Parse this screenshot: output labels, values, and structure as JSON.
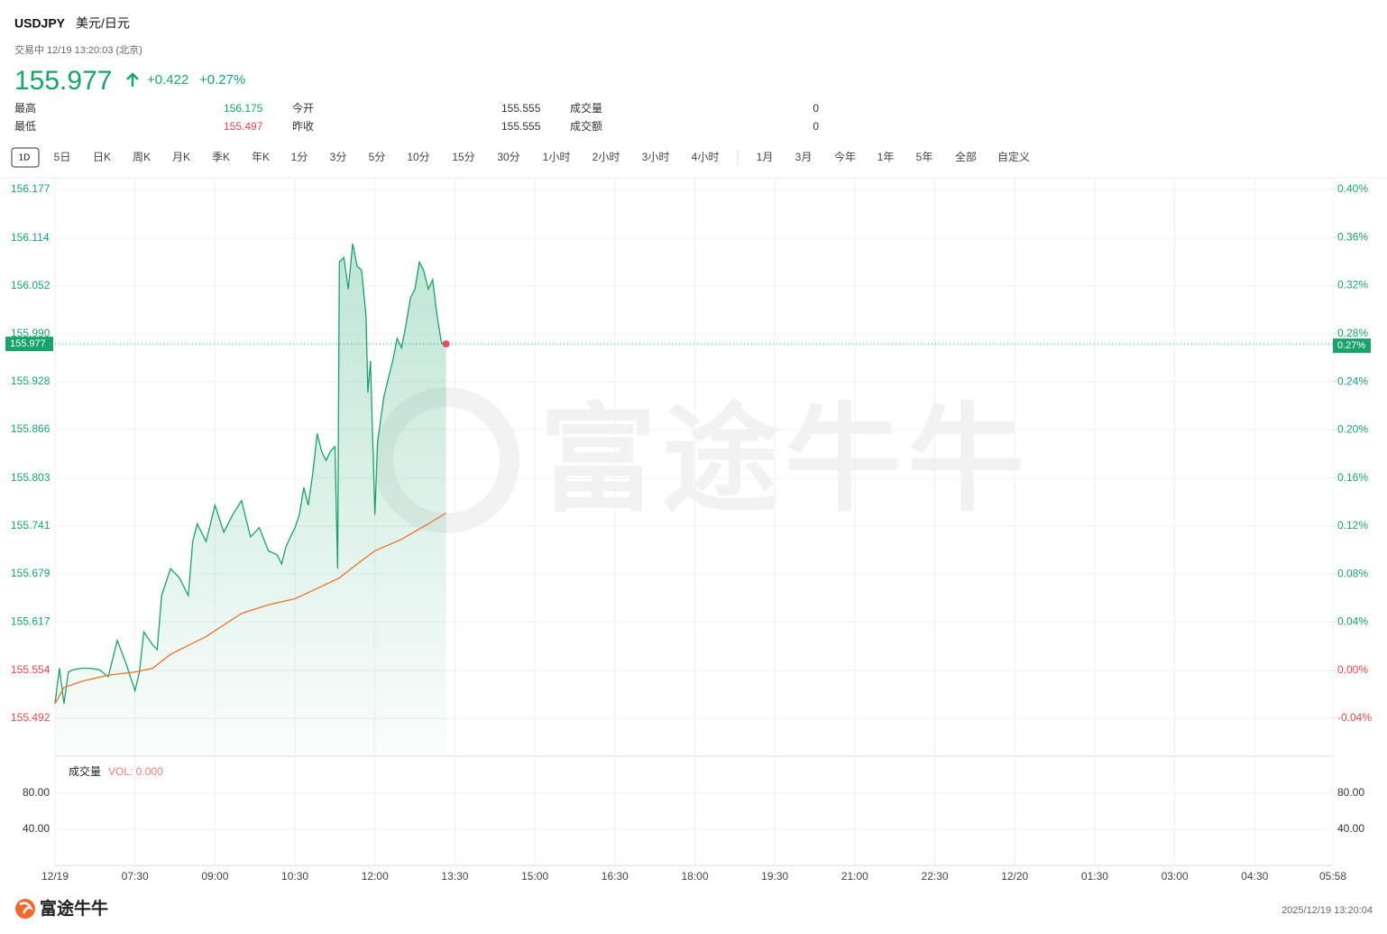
{
  "header": {
    "symbol": "USDJPY",
    "name": "美元/日元",
    "status": "交易中 12/19 13:20:03 (北京)",
    "price": "155.977",
    "change": "+0.422",
    "change_pct": "+0.27%"
  },
  "stats": {
    "rows": [
      [
        "最高",
        "156.175",
        "今开",
        "155.555",
        "成交量",
        "0"
      ],
      [
        "最低",
        "155.497",
        "昨收",
        "155.555",
        "成交额",
        "0"
      ]
    ]
  },
  "tabs": [
    [
      "1D",
      "5日",
      "日K",
      "周K",
      "月K",
      "季K",
      "年K",
      "1分",
      "3分",
      "5分",
      "10分",
      "15分",
      "30分",
      "1小时",
      "2小时",
      "3小时",
      "4小时"
    ],
    [
      "1月",
      "3月",
      "今年",
      "1年",
      "5年",
      "全部",
      "自定义"
    ]
  ],
  "chart_data": {
    "type": "line",
    "watermark": "富途牛牛",
    "prev_close": 155.555,
    "current_price": 155.977,
    "current_pct": {
      "value": 0.27,
      "label": "0.27%"
    },
    "x": [
      0,
      5,
      10,
      15,
      20,
      30,
      40,
      50,
      60,
      70,
      80,
      90,
      95,
      100,
      110,
      115,
      120,
      130,
      140,
      150,
      155,
      160,
      170,
      180,
      190,
      200,
      210,
      220,
      230,
      240,
      250,
      255,
      260,
      270,
      275,
      280,
      285,
      290,
      295,
      300,
      305,
      310,
      315,
      318,
      320,
      325,
      330,
      335,
      340,
      345,
      350,
      352,
      355,
      360,
      363,
      370,
      375,
      380,
      385,
      390,
      395,
      400,
      405,
      410,
      415,
      420,
      425,
      430,
      435,
      440
    ],
    "series": [
      {
        "name": "price",
        "color": "#18a36c",
        "values": [
          155.511,
          155.557,
          155.511,
          155.552,
          155.555,
          155.557,
          155.557,
          155.555,
          155.546,
          155.593,
          155.563,
          155.528,
          155.552,
          155.604,
          155.587,
          155.581,
          155.651,
          155.686,
          155.674,
          155.651,
          155.721,
          155.744,
          155.721,
          155.768,
          155.733,
          155.756,
          155.774,
          155.727,
          155.739,
          155.709,
          155.704,
          155.692,
          155.715,
          155.739,
          155.756,
          155.791,
          155.768,
          155.809,
          155.861,
          155.838,
          155.826,
          155.838,
          155.844,
          155.686,
          156.083,
          156.089,
          156.048,
          156.107,
          156.078,
          156.072,
          156.013,
          155.914,
          155.955,
          155.756,
          155.85,
          155.908,
          155.932,
          155.955,
          155.984,
          155.972,
          156.002,
          156.037,
          156.048,
          156.083,
          156.072,
          156.048,
          156.06,
          156.013,
          155.978,
          155.978
        ]
      },
      {
        "name": "average",
        "color": "#e8742b",
        "x": [
          0,
          10,
          30,
          60,
          90,
          110,
          130,
          170,
          210,
          240,
          270,
          300,
          320,
          340,
          360,
          390,
          420,
          440
        ],
        "values": [
          155.511,
          155.532,
          155.54,
          155.548,
          155.552,
          155.557,
          155.575,
          155.598,
          155.628,
          155.639,
          155.647,
          155.663,
          155.674,
          155.692,
          155.709,
          155.724,
          155.744,
          155.758
        ]
      }
    ],
    "xlim": [
      0,
      1438
    ],
    "xticks": [
      {
        "value": 0,
        "label": "12/19"
      },
      {
        "value": 90,
        "label": "07:30"
      },
      {
        "value": 180,
        "label": "09:00"
      },
      {
        "value": 270,
        "label": "10:30"
      },
      {
        "value": 360,
        "label": "12:00"
      },
      {
        "value": 450,
        "label": "13:30"
      },
      {
        "value": 540,
        "label": "15:00"
      },
      {
        "value": 630,
        "label": "16:30"
      },
      {
        "value": 720,
        "label": "18:00"
      },
      {
        "value": 810,
        "label": "19:30"
      },
      {
        "value": 900,
        "label": "21:00"
      },
      {
        "value": 990,
        "label": "22:30"
      },
      {
        "value": 1080,
        "label": "12/20"
      },
      {
        "value": 1170,
        "label": "01:30"
      },
      {
        "value": 1260,
        "label": "03:00"
      },
      {
        "value": 1350,
        "label": "04:30"
      },
      {
        "value": 1438,
        "label": "05:58"
      }
    ],
    "ylim": [
      155.443,
      156.191
    ],
    "yticks": [
      156.177,
      156.114,
      156.052,
      {
        "value": 155.99,
        "label": "155.990"
      },
      155.928,
      155.866,
      155.803,
      155.741,
      155.679,
      155.617,
      155.554,
      155.492
    ],
    "y2lim": [
      -0.0715,
      0.409
    ],
    "y2ticks": [
      {
        "value": 0.4,
        "label": "0.40%"
      },
      {
        "value": 0.36,
        "label": "0.36%"
      },
      {
        "value": 0.32,
        "label": "0.32%"
      },
      {
        "value": 0.28,
        "label": "0.28%"
      },
      {
        "value": 0.24,
        "label": "0.24%"
      },
      {
        "value": 0.2,
        "label": "0.20%"
      },
      {
        "value": 0.16,
        "label": "0.16%"
      },
      {
        "value": 0.12,
        "label": "0.12%"
      },
      {
        "value": 0.08,
        "label": "0.08%"
      },
      {
        "value": 0.04,
        "label": "0.04%"
      },
      {
        "value": 0,
        "label": "0.00%"
      },
      {
        "value": -0.04,
        "label": "-0.04%"
      }
    ],
    "grid": true,
    "volume": {
      "title": "成交量",
      "label": "VOL: 0.000",
      "ylim": [
        0,
        121
      ],
      "yticks": [
        {
          "value": 80,
          "label": "80.00"
        },
        {
          "value": 40,
          "label": "40.00"
        }
      ]
    }
  },
  "footer": {
    "logo": "富途牛牛",
    "timestamp": "2025/12/19 13:20:04"
  }
}
